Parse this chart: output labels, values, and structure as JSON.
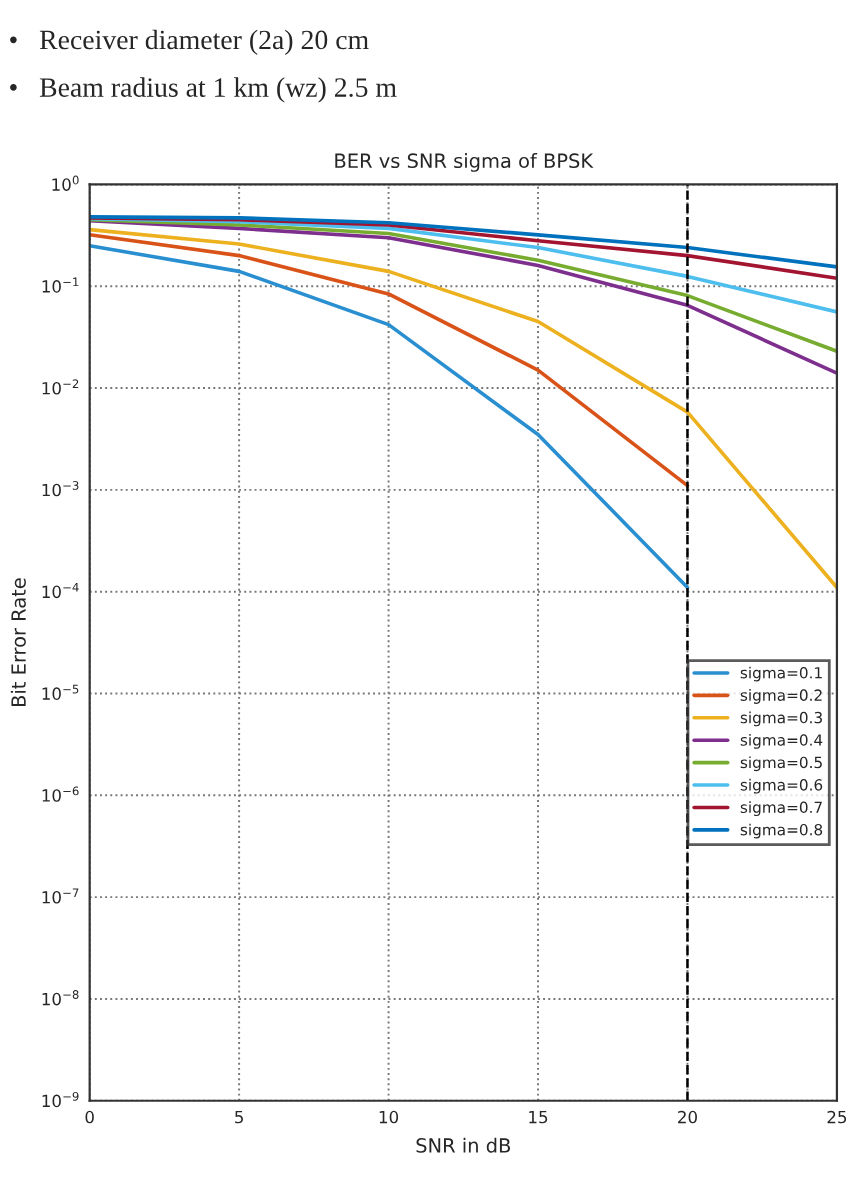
{
  "chart_data": {
    "type": "line",
    "title": "BER vs SNR sigma of BPSK",
    "xlabel": "SNR in dB",
    "ylabel": "Bit Error Rate",
    "annotations": [
      "•   Receiver diameter (2a) 20 cm",
      "•   Beam radius at 1 km (wz) 2.5 m"
    ],
    "log": "y",
    "xlim": [
      0,
      25
    ],
    "xticks": [
      0,
      5,
      10,
      15,
      20,
      25
    ],
    "ylim": [
      1e-09,
      1
    ],
    "yticks": [
      {
        "value": 1e-09,
        "label": "10$^{−9}$"
      },
      {
        "value": 1e-08,
        "label": "10$^{−8}$"
      },
      {
        "value": 1e-07,
        "label": "10$^{−7}$"
      },
      {
        "value": 1e-06,
        "label": "10$^{−6}$"
      },
      {
        "value": 1e-05,
        "label": "10$^{−5}$"
      },
      {
        "value": 0.0001,
        "label": "10$^{−4}$"
      },
      {
        "value": 0.001,
        "label": "10$^{−3}$"
      },
      {
        "value": 0.01,
        "label": "10$^{−2}$"
      },
      {
        "value": 0.1,
        "label": "10$^{−1}$"
      },
      {
        "value": 1,
        "label": "10$^{0}$"
      }
    ],
    "grid": true,
    "legend": "right",
    "line_style": "solid",
    "marker": "none",
    "ref_lines": [
      {
        "axis": "x",
        "value": 20,
        "color": "#000000",
        "line_style": "dashed"
      }
    ],
    "series": [
      {
        "name": "sigma=0.1",
        "color": "#2a8fd0",
        "x": [
          0,
          5,
          10,
          15,
          20
        ],
        "values": [
          0.25,
          0.14,
          0.042,
          0.0035,
          0.00011
        ]
      },
      {
        "name": "sigma=0.2",
        "color": "#d95319",
        "x": [
          0,
          5,
          10,
          15,
          20
        ],
        "values": [
          0.32,
          0.2,
          0.084,
          0.015,
          0.0011
        ]
      },
      {
        "name": "sigma=0.3",
        "color": "#edb120",
        "x": [
          0,
          5,
          10,
          15,
          20,
          25
        ],
        "values": [
          0.36,
          0.26,
          0.14,
          0.045,
          0.0058,
          0.00011
        ]
      },
      {
        "name": "sigma=0.4",
        "color": "#7e2f8e",
        "x": [
          0,
          5,
          10,
          15,
          20,
          25
        ],
        "values": [
          0.44,
          0.37,
          0.3,
          0.16,
          0.065,
          0.014
        ]
      },
      {
        "name": "sigma=0.5",
        "color": "#77ac30",
        "x": [
          0,
          5,
          10,
          15,
          20,
          25
        ],
        "values": [
          0.45,
          0.4,
          0.33,
          0.18,
          0.081,
          0.023
        ]
      },
      {
        "name": "sigma=0.6",
        "color": "#4dbeee",
        "x": [
          0,
          5,
          10,
          15,
          20,
          25
        ],
        "values": [
          0.46,
          0.43,
          0.37,
          0.24,
          0.125,
          0.056
        ]
      },
      {
        "name": "sigma=0.7",
        "color": "#a2142f",
        "x": [
          0,
          5,
          10,
          15,
          20,
          25
        ],
        "values": [
          0.47,
          0.45,
          0.4,
          0.28,
          0.2,
          0.12
        ]
      },
      {
        "name": "sigma=0.8",
        "color": "#0072bd",
        "x": [
          0,
          5,
          10,
          15,
          20,
          25
        ],
        "values": [
          0.48,
          0.47,
          0.42,
          0.32,
          0.24,
          0.155
        ]
      }
    ]
  }
}
